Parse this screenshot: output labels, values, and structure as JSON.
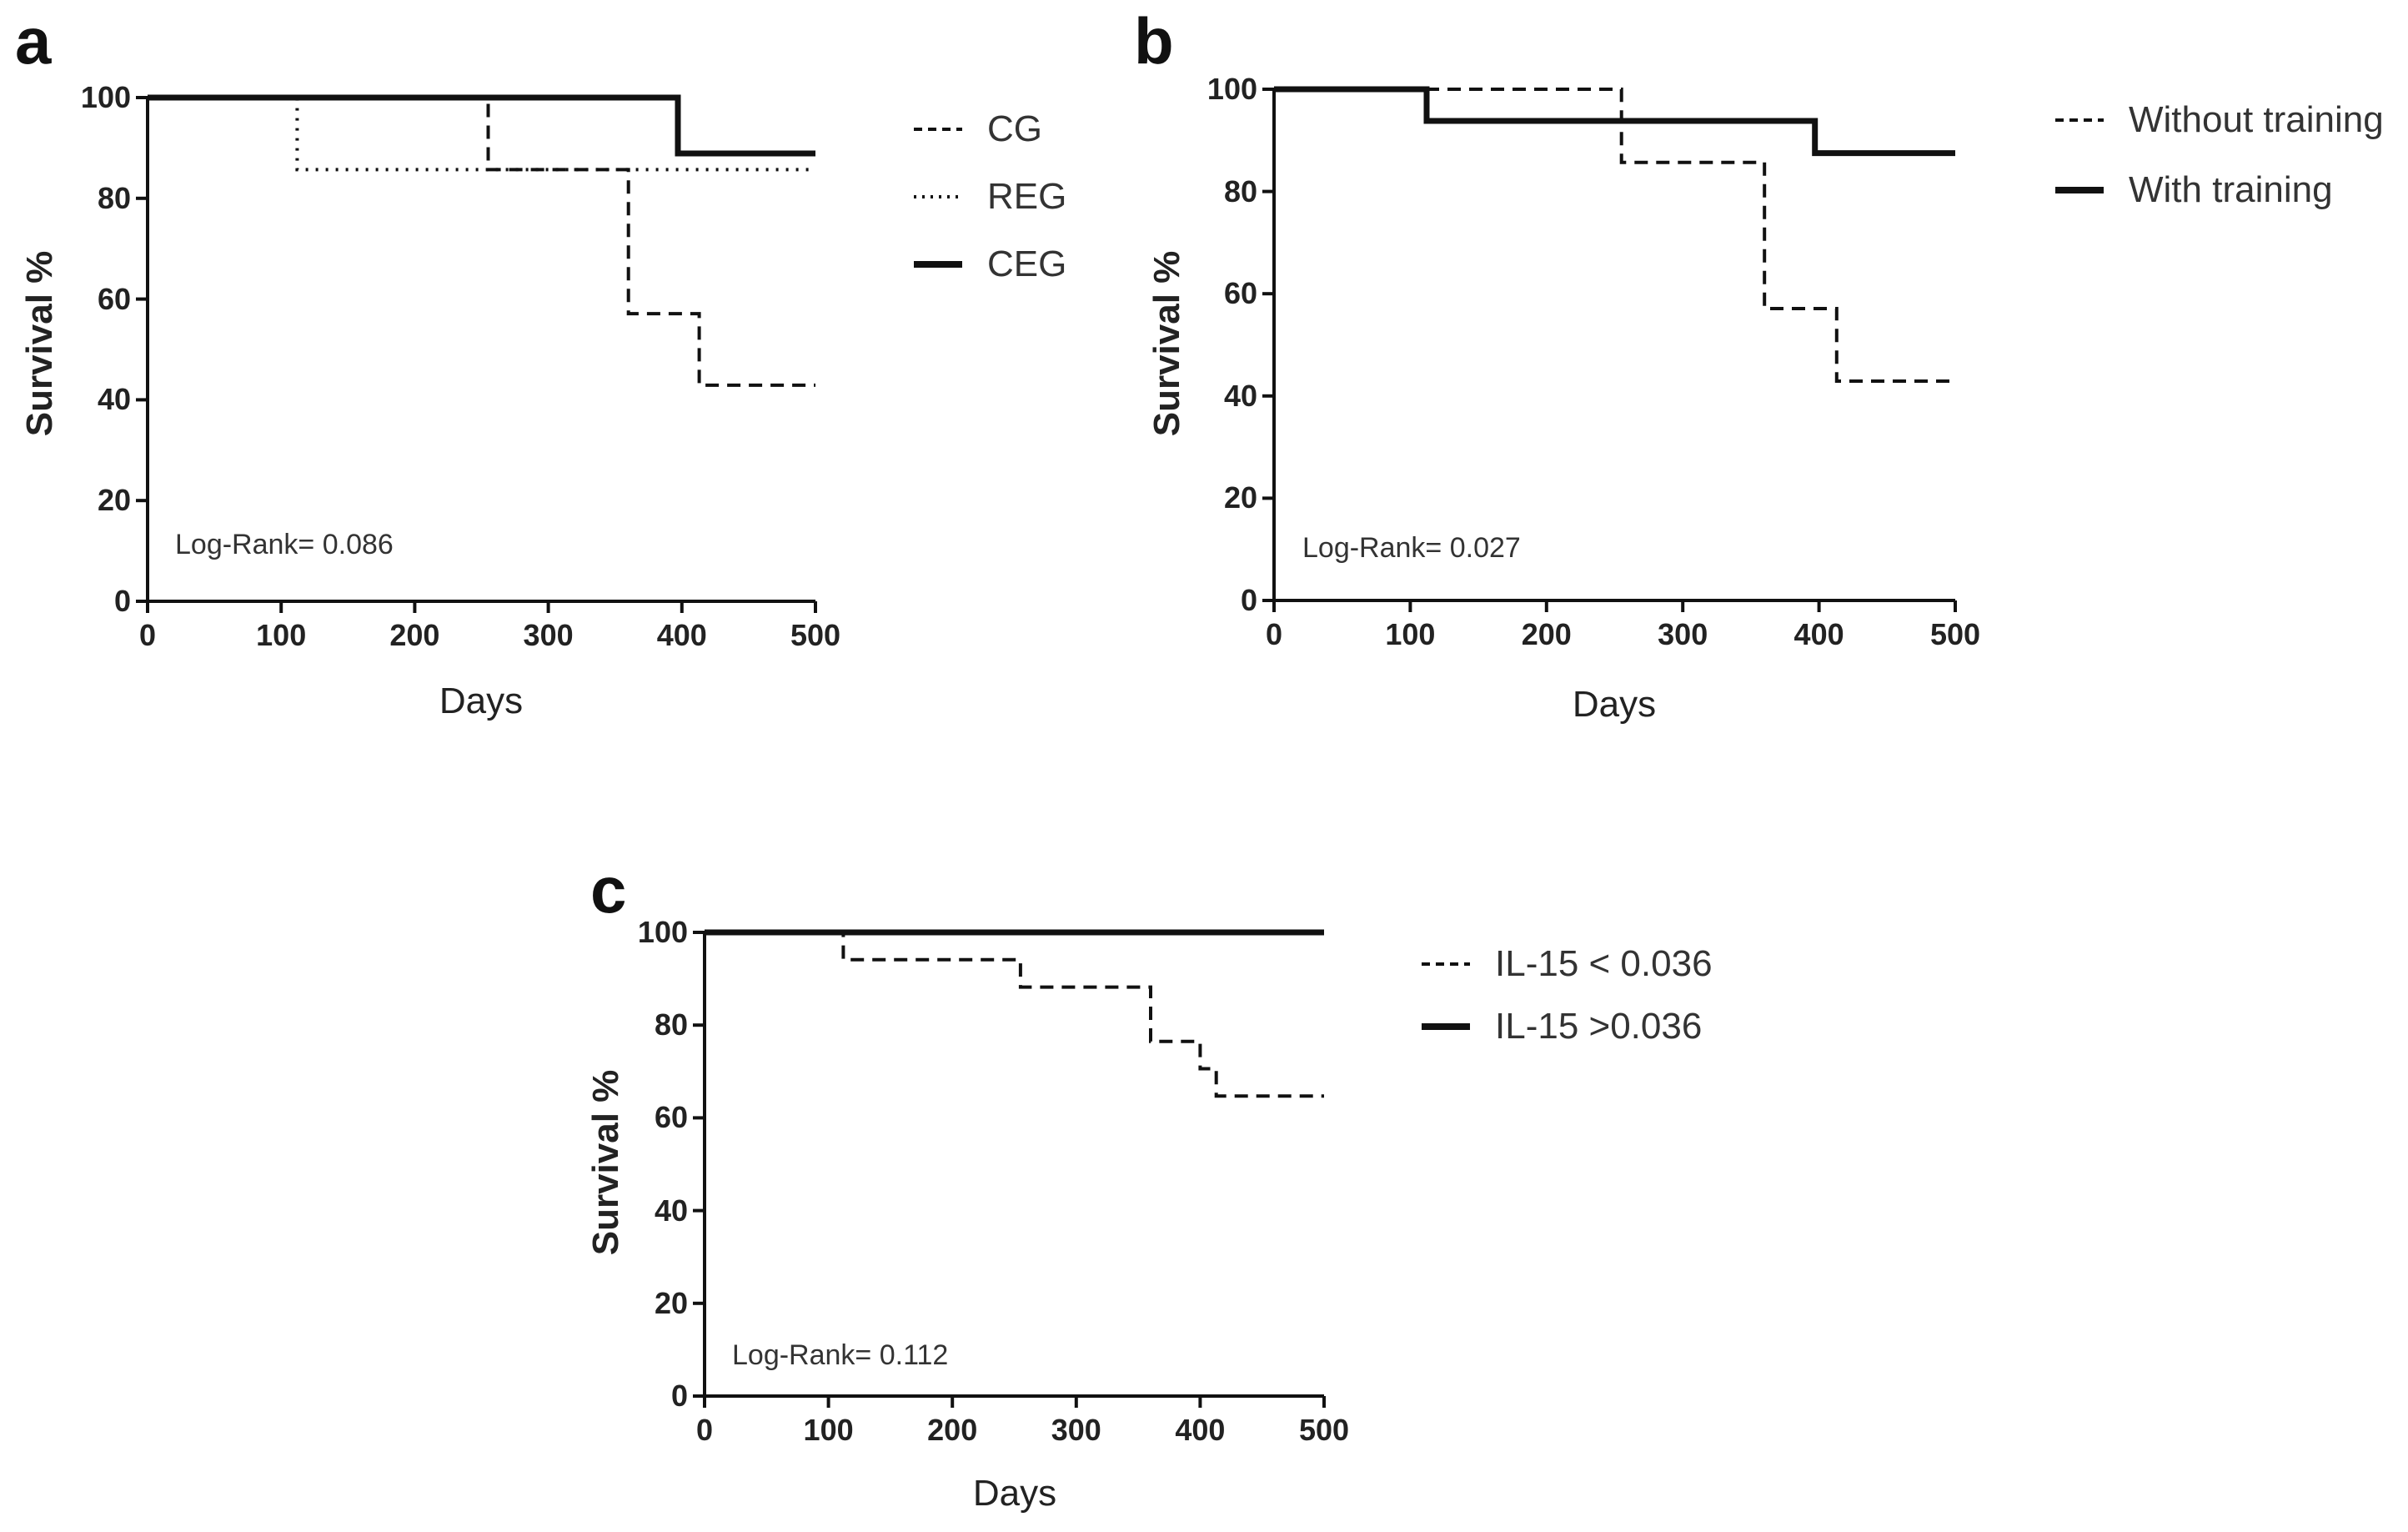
{
  "colors": {
    "line": "#111111",
    "axis": "#111111",
    "text": "#222222"
  },
  "chart_data": [
    {
      "panel_letter": "a",
      "type": "line",
      "subtype": "kaplan-meier-step",
      "xlabel": "Days",
      "ylabel": "Survival %",
      "xlim": [
        0,
        500
      ],
      "ylim": [
        0,
        100
      ],
      "xticks": [
        0,
        100,
        200,
        300,
        400,
        500
      ],
      "yticks": [
        0,
        20,
        40,
        60,
        80,
        100
      ],
      "annotation": "Log-Rank= 0.086",
      "series": [
        {
          "name": "CG",
          "style": "dashed",
          "points": [
            [
              0,
              100
            ],
            [
              255,
              100
            ],
            [
              255,
              85.7
            ],
            [
              360,
              85.7
            ],
            [
              360,
              57.1
            ],
            [
              413,
              57.1
            ],
            [
              413,
              42.9
            ],
            [
              500,
              42.9
            ]
          ]
        },
        {
          "name": "REG",
          "style": "dotted",
          "points": [
            [
              0,
              100
            ],
            [
              112,
              100
            ],
            [
              112,
              85.7
            ],
            [
              500,
              85.7
            ]
          ]
        },
        {
          "name": "CEG",
          "style": "solid",
          "points": [
            [
              0,
              100
            ],
            [
              397,
              100
            ],
            [
              397,
              88.9
            ],
            [
              500,
              88.9
            ]
          ]
        }
      ]
    },
    {
      "panel_letter": "b",
      "type": "line",
      "subtype": "kaplan-meier-step",
      "xlabel": "Days",
      "ylabel": "Survival %",
      "xlim": [
        0,
        500
      ],
      "ylim": [
        0,
        100
      ],
      "xticks": [
        0,
        100,
        200,
        300,
        400,
        500
      ],
      "yticks": [
        0,
        20,
        40,
        60,
        80,
        100
      ],
      "annotation": "Log-Rank= 0.027",
      "series": [
        {
          "name": "Without training",
          "style": "dashed",
          "points": [
            [
              0,
              100
            ],
            [
              255,
              100
            ],
            [
              255,
              85.7
            ],
            [
              360,
              85.7
            ],
            [
              360,
              57.1
            ],
            [
              413,
              57.1
            ],
            [
              413,
              42.9
            ],
            [
              500,
              42.9
            ]
          ]
        },
        {
          "name": "With training",
          "style": "solid",
          "points": [
            [
              0,
              100
            ],
            [
              112,
              100
            ],
            [
              112,
              93.8
            ],
            [
              397,
              93.8
            ],
            [
              397,
              87.5
            ],
            [
              500,
              87.5
            ]
          ]
        }
      ]
    },
    {
      "panel_letter": "c",
      "type": "line",
      "subtype": "kaplan-meier-step",
      "xlabel": "Days",
      "ylabel": "Survival %",
      "xlim": [
        0,
        500
      ],
      "ylim": [
        0,
        100
      ],
      "xticks": [
        0,
        100,
        200,
        300,
        400,
        500
      ],
      "yticks": [
        0,
        20,
        40,
        60,
        80,
        100
      ],
      "annotation": "Log-Rank= 0.112",
      "series": [
        {
          "name": "IL-15 < 0.036",
          "style": "dashed",
          "points": [
            [
              0,
              100
            ],
            [
              112,
              100
            ],
            [
              112,
              94.1
            ],
            [
              255,
              94.1
            ],
            [
              255,
              88.2
            ],
            [
              360,
              88.2
            ],
            [
              360,
              76.5
            ],
            [
              400,
              76.5
            ],
            [
              400,
              70.6
            ],
            [
              413,
              70.6
            ],
            [
              413,
              64.7
            ],
            [
              500,
              64.7
            ]
          ]
        },
        {
          "name": "IL-15 >0.036",
          "style": "solid",
          "points": [
            [
              0,
              100
            ],
            [
              500,
              100
            ]
          ]
        }
      ]
    }
  ]
}
